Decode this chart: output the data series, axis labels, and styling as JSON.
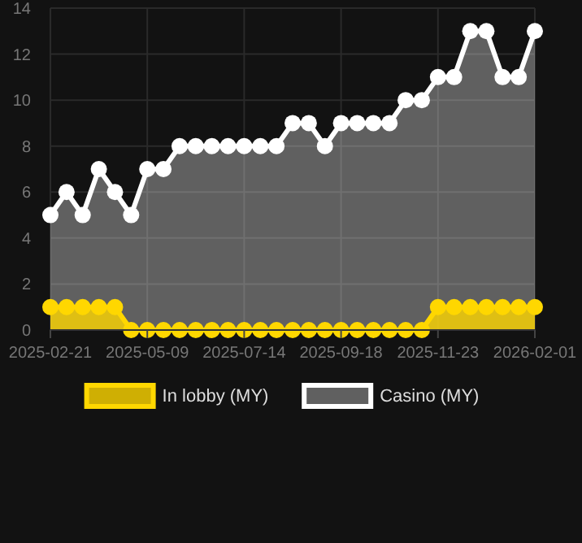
{
  "chart_data": {
    "type": "area",
    "categories": [
      "2025-02-21",
      null,
      null,
      null,
      null,
      null,
      "2025-05-09",
      null,
      null,
      null,
      null,
      null,
      "2025-07-14",
      null,
      null,
      null,
      null,
      null,
      "2025-09-18",
      null,
      null,
      null,
      null,
      null,
      "2025-11-23",
      null,
      null,
      null,
      null,
      null,
      "2026-02-01"
    ],
    "series": [
      {
        "name": "Casino (MY)",
        "color": "#ffffff",
        "values": [
          5,
          6,
          5,
          7,
          6,
          5,
          7,
          7,
          8,
          8,
          8,
          8,
          8,
          8,
          8,
          9,
          9,
          8,
          9,
          9,
          9,
          9,
          10,
          10,
          11,
          11,
          13,
          13,
          11,
          11,
          13
        ]
      },
      {
        "name": "In lobby (MY)",
        "color": "#ffd700",
        "values": [
          1,
          1,
          1,
          1,
          1,
          0,
          0,
          0,
          0,
          0,
          0,
          0,
          0,
          0,
          0,
          0,
          0,
          0,
          0,
          0,
          0,
          0,
          0,
          0,
          1,
          1,
          1,
          1,
          1,
          1,
          1
        ]
      }
    ],
    "ylim": [
      0,
      14
    ],
    "yticks": [
      0,
      2,
      4,
      6,
      8,
      10,
      12,
      14
    ],
    "grid": true,
    "legend": "bottom",
    "marker": "circle"
  }
}
